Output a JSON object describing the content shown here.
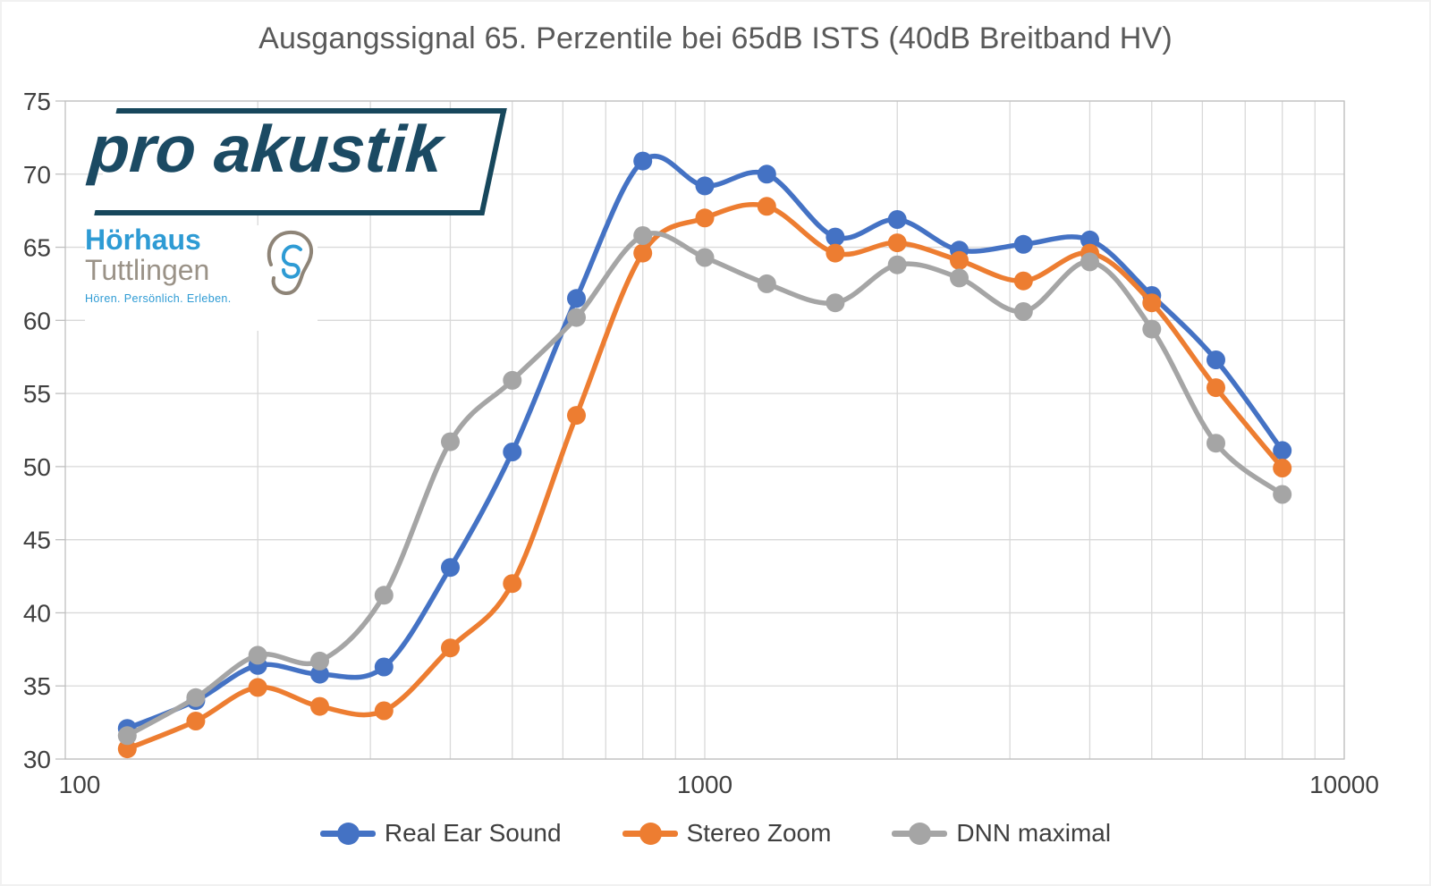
{
  "title": "Ausgangssignal 65. Perzentile bei 65dB ISTS (40dB Breitband HV)",
  "logos": {
    "pro_akustik": "pro akustik",
    "hoerhaus_line1": "Hörhaus",
    "hoerhaus_line2": "Tuttlingen",
    "hoerhaus_tagline": "Hören. Persönlich. Erleben."
  },
  "colors": {
    "title": "#595959",
    "tick_labels": "#404040",
    "gridlines": "#D9D9D9",
    "axis_line": "#BFBFBF",
    "series_blue": "#4472C4",
    "series_orange": "#ED7D31",
    "series_gray": "#A5A5A5",
    "logo_teal": "#17475C",
    "logo_blue": "#2E9BD4",
    "logo_gray": "#9A9287"
  },
  "chart_data": {
    "type": "line",
    "title": "Ausgangssignal 65. Perzentile bei 65dB ISTS (40dB Breitband HV)",
    "x_scale": "log",
    "xlim": [
      100,
      10000
    ],
    "ylim": [
      30,
      75
    ],
    "grid": true,
    "legend_position": "bottom",
    "smooth_lines": true,
    "x_tick_values": [
      100,
      1000,
      10000
    ],
    "x_tick_labels": [
      "100",
      "1000",
      "10000"
    ],
    "y_ticks": [
      30,
      35,
      40,
      45,
      50,
      55,
      60,
      65,
      70,
      75
    ],
    "x": [
      125,
      160,
      200,
      250,
      315,
      400,
      500,
      630,
      800,
      1000,
      1250,
      1600,
      2000,
      2500,
      3150,
      4000,
      5000,
      6300,
      8000
    ],
    "xlabel": "",
    "ylabel": "",
    "series": [
      {
        "name": "Real Ear Sound",
        "color": "#4472C4",
        "values": [
          32.1,
          34.0,
          36.4,
          35.8,
          36.3,
          43.1,
          51.0,
          61.5,
          70.9,
          69.2,
          70.0,
          65.7,
          66.9,
          64.8,
          65.2,
          65.5,
          61.7,
          57.3,
          51.1
        ]
      },
      {
        "name": "Stereo Zoom",
        "color": "#ED7D31",
        "values": [
          30.7,
          32.6,
          34.9,
          33.6,
          33.3,
          37.6,
          42.0,
          53.5,
          64.6,
          67.0,
          67.8,
          64.6,
          65.3,
          64.1,
          62.7,
          64.6,
          61.2,
          55.4,
          49.9
        ]
      },
      {
        "name": "DNN maximal",
        "color": "#A5A5A5",
        "values": [
          31.6,
          34.2,
          37.1,
          36.7,
          41.2,
          51.7,
          55.9,
          60.2,
          65.8,
          64.3,
          62.5,
          61.2,
          63.8,
          62.9,
          60.6,
          64.0,
          59.4,
          51.6,
          48.1
        ]
      }
    ]
  }
}
